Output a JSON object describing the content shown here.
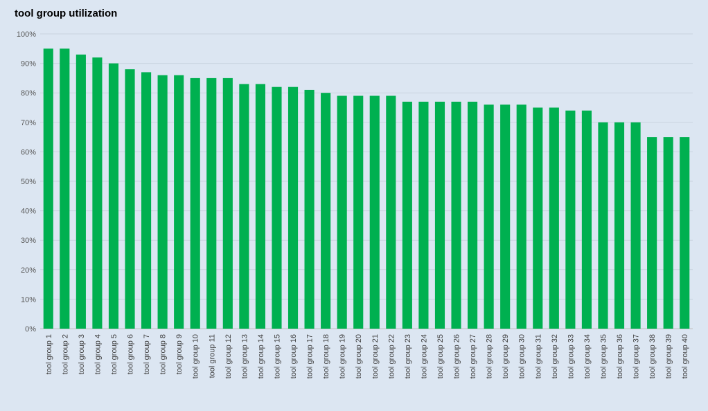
{
  "chart_data": {
    "type": "bar",
    "title": "tool group utilization",
    "xlabel": "",
    "ylabel": "",
    "ylim": [
      0,
      100
    ],
    "y_ticks": [
      "0%",
      "10%",
      "20%",
      "30%",
      "40%",
      "50%",
      "60%",
      "70%",
      "80%",
      "90%",
      "100%"
    ],
    "grid": true,
    "bar_color": "#00b050",
    "categories": [
      "tool group 1",
      "tool group 2",
      "tool group 3",
      "tool group 4",
      "tool group 5",
      "tool group 6",
      "tool group 7",
      "tool group 8",
      "tool group 9",
      "tool group 10",
      "tool group 11",
      "tool group 12",
      "tool group 13",
      "tool group 14",
      "tool group 15",
      "tool group 16",
      "tool group 17",
      "tool group 18",
      "tool group 19",
      "tool group 20",
      "tool group 21",
      "tool group 22",
      "tool group 23",
      "tool group 24",
      "tool group 25",
      "tool group 26",
      "tool group 27",
      "tool group 28",
      "tool group 29",
      "tool group 30",
      "tool group 31",
      "tool group 32",
      "tool group 33",
      "tool group 34",
      "tool group 35",
      "tool group 36",
      "tool group 37",
      "tool group 38",
      "tool group 39",
      "tool group 40"
    ],
    "values": [
      95,
      95,
      93,
      92,
      90,
      88,
      87,
      86,
      86,
      85,
      85,
      85,
      83,
      83,
      82,
      82,
      81,
      80,
      79,
      79,
      79,
      79,
      77,
      77,
      77,
      77,
      77,
      76,
      76,
      76,
      75,
      75,
      74,
      74,
      70,
      70,
      70,
      65,
      65,
      65
    ]
  }
}
